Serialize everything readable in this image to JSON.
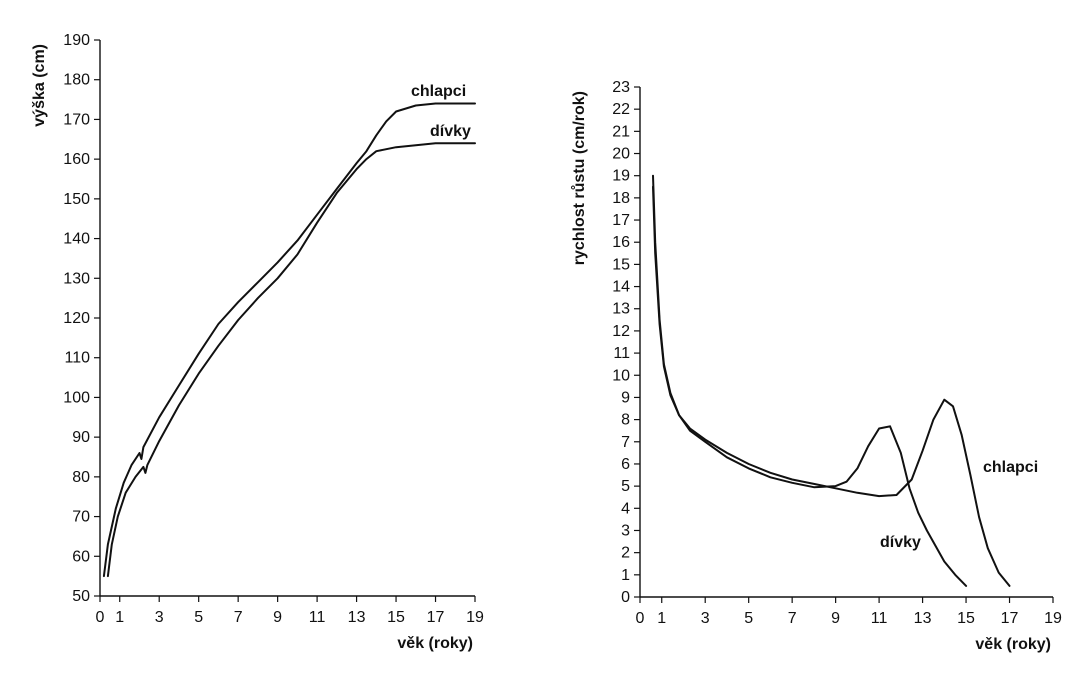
{
  "chart_data": [
    {
      "type": "line",
      "xlabel": "věk (roky)",
      "ylabel": "výška (cm)",
      "xlim": [
        0,
        19
      ],
      "ylim": [
        50,
        190
      ],
      "xticks": [
        0,
        1,
        3,
        5,
        7,
        9,
        11,
        13,
        15,
        17,
        19
      ],
      "yticks": [
        50,
        60,
        70,
        80,
        90,
        100,
        110,
        120,
        130,
        140,
        150,
        160,
        170,
        180,
        190
      ],
      "grid": false,
      "series": [
        {
          "name": "chlapci",
          "x": [
            0.2,
            0.4,
            0.8,
            1.2,
            1.6,
            2.0,
            2.1,
            2.2,
            3.0,
            4.0,
            5.0,
            6.0,
            7.0,
            8.0,
            9.0,
            10.0,
            11.0,
            12.0,
            13.0,
            13.5,
            14.0,
            14.5,
            15.0,
            16.0,
            17.0,
            19.0
          ],
          "y": [
            55,
            63,
            72,
            78.5,
            83,
            86,
            84.5,
            87.5,
            95,
            103,
            111,
            118.5,
            124,
            129,
            134,
            139.5,
            146,
            152.5,
            159,
            162,
            166,
            169.5,
            172,
            173.5,
            174,
            174
          ]
        },
        {
          "name": "dívky",
          "x": [
            0.4,
            0.6,
            0.9,
            1.3,
            1.8,
            2.2,
            2.3,
            2.4,
            3.0,
            4.0,
            5.0,
            6.0,
            7.0,
            8.0,
            9.0,
            10.0,
            11.0,
            12.0,
            13.0,
            13.5,
            14.0,
            15.0,
            16.0,
            17.0,
            19.0
          ],
          "y": [
            55,
            63,
            70,
            76,
            80,
            82.5,
            81,
            83,
            89,
            98,
            106,
            113,
            119.5,
            125,
            130,
            136,
            144,
            151.5,
            157.5,
            160,
            162,
            163,
            163.5,
            164,
            164
          ]
        }
      ]
    },
    {
      "type": "line",
      "xlabel": "věk (roky)",
      "ylabel": "rychlost růstu (cm/rok)",
      "xlim": [
        0,
        19
      ],
      "ylim": [
        0,
        23
      ],
      "xticks": [
        0,
        1,
        3,
        5,
        7,
        9,
        11,
        13,
        15,
        17,
        19
      ],
      "yticks": [
        0,
        1,
        2,
        3,
        4,
        5,
        6,
        7,
        8,
        9,
        10,
        11,
        12,
        13,
        14,
        15,
        16,
        17,
        18,
        19,
        20,
        21,
        22,
        23
      ],
      "grid": false,
      "series": [
        {
          "name": "chlapci",
          "x": [
            0.6,
            0.7,
            0.9,
            1.1,
            1.4,
            1.8,
            2.3,
            3.0,
            4.0,
            5.0,
            6.0,
            7.0,
            8.0,
            9.0,
            10.0,
            11.0,
            11.8,
            12.5,
            13.0,
            13.5,
            14.0,
            14.4,
            14.8,
            15.2,
            15.6,
            16.0,
            16.5,
            17.0
          ],
          "y": [
            19,
            16,
            12.5,
            10.5,
            9.2,
            8.2,
            7.6,
            7.1,
            6.5,
            6.0,
            5.6,
            5.3,
            5.1,
            4.9,
            4.7,
            4.55,
            4.6,
            5.3,
            6.6,
            8.0,
            8.9,
            8.6,
            7.3,
            5.5,
            3.6,
            2.2,
            1.1,
            0.5
          ]
        },
        {
          "name": "dívky",
          "x": [
            0.6,
            0.7,
            0.9,
            1.1,
            1.4,
            1.8,
            2.3,
            3.0,
            4.0,
            5.0,
            6.0,
            7.0,
            8.0,
            9.0,
            9.5,
            10.0,
            10.5,
            11.0,
            11.5,
            12.0,
            12.4,
            12.8,
            13.2,
            13.6,
            14.0,
            14.5,
            15.0
          ],
          "y": [
            18.5,
            15.5,
            12.3,
            10.4,
            9.1,
            8.2,
            7.5,
            7.0,
            6.3,
            5.8,
            5.4,
            5.15,
            4.95,
            5.0,
            5.2,
            5.8,
            6.8,
            7.6,
            7.7,
            6.5,
            4.9,
            3.8,
            3.0,
            2.3,
            1.6,
            1.0,
            0.5
          ]
        }
      ],
      "annotations": [
        "chlapci",
        "dívky"
      ]
    }
  ]
}
